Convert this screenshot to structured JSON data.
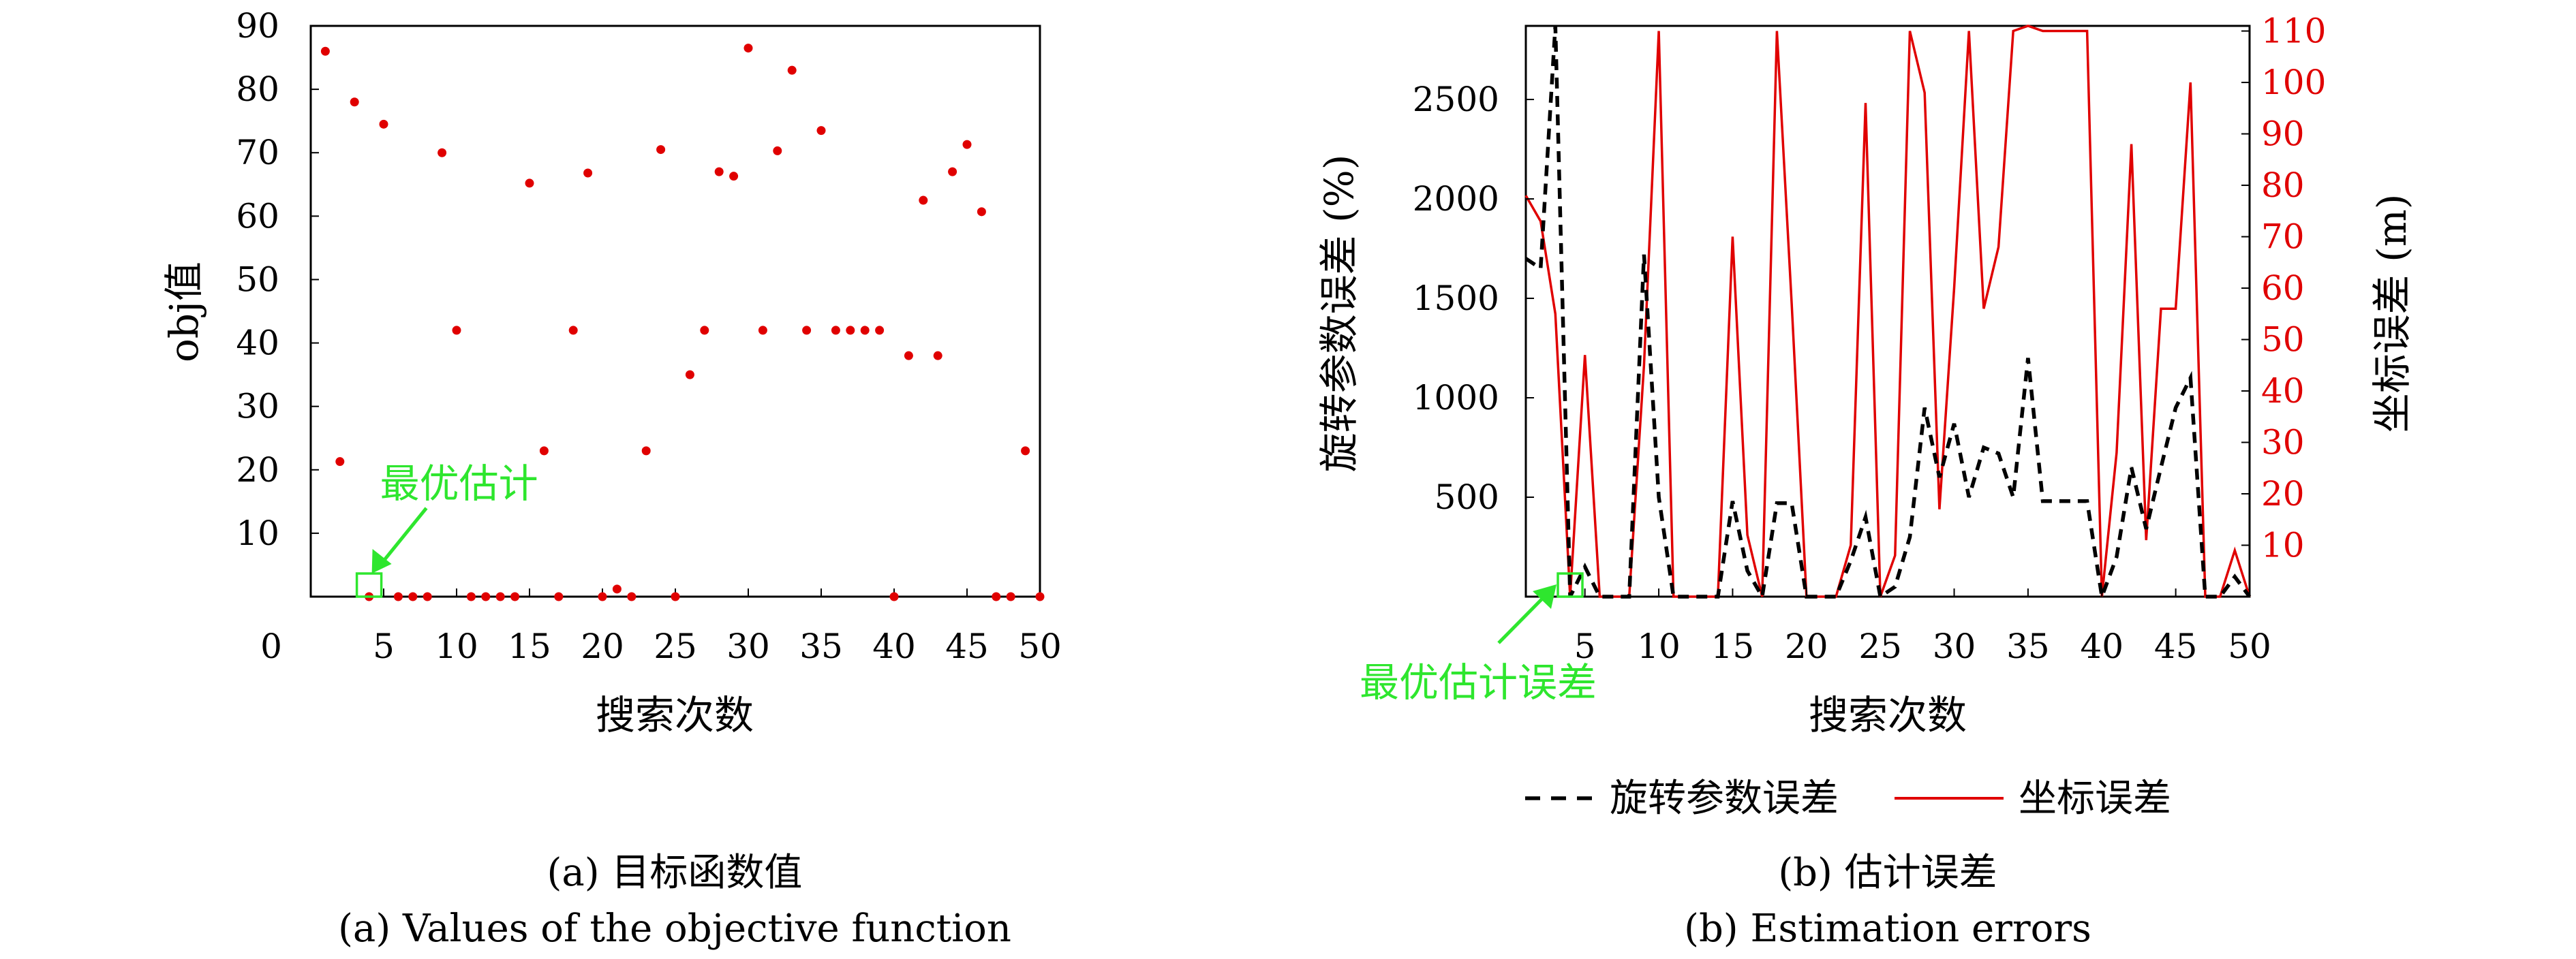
{
  "captions": {
    "a_cn": "(a) 目标函数值",
    "a_en": "(a) Values of the objective function",
    "b_cn": "(b) 估计误差",
    "b_en": "(b) Estimation errors"
  },
  "chart_data": [
    {
      "type": "scatter",
      "xlabel": "搜索次数",
      "ylabel": "obj值",
      "xlim": [
        0,
        50
      ],
      "ylim": [
        0,
        90
      ],
      "xticks": [
        5,
        10,
        15,
        20,
        25,
        30,
        35,
        40,
        45,
        50
      ],
      "xtick_labels": [
        "5",
        "10",
        "15",
        "20",
        "25",
        "30",
        "35",
        "40",
        "45",
        "50"
      ],
      "yticks": [
        10,
        20,
        30,
        40,
        50,
        60,
        70,
        80,
        90
      ],
      "ytick_labels": [
        "10",
        "20",
        "30",
        "40",
        "50",
        "60",
        "70",
        "80",
        "90"
      ],
      "origin_label": "0",
      "grid": false,
      "marker_color": "#e00000",
      "annotation": {
        "text": "最优估计",
        "x": 4,
        "y": 0,
        "color": "#2ee62e"
      },
      "points": [
        [
          1,
          86
        ],
        [
          2,
          21.3
        ],
        [
          3,
          78
        ],
        [
          4,
          0
        ],
        [
          5,
          74.5
        ],
        [
          6,
          0
        ],
        [
          7,
          0
        ],
        [
          8,
          0
        ],
        [
          9,
          70
        ],
        [
          10,
          42
        ],
        [
          11,
          0
        ],
        [
          12,
          0
        ],
        [
          13,
          0
        ],
        [
          14,
          0
        ],
        [
          15,
          65.2
        ],
        [
          16,
          23
        ],
        [
          17,
          0
        ],
        [
          18,
          42
        ],
        [
          19,
          66.8
        ],
        [
          20,
          0
        ],
        [
          21,
          1.2
        ],
        [
          22,
          0
        ],
        [
          23,
          23
        ],
        [
          24,
          70.5
        ],
        [
          25,
          0
        ],
        [
          26,
          35
        ],
        [
          27,
          42
        ],
        [
          28,
          67
        ],
        [
          29,
          66.3
        ],
        [
          30,
          86.5
        ],
        [
          31,
          42
        ],
        [
          32,
          70.3
        ],
        [
          33,
          83
        ],
        [
          34,
          42
        ],
        [
          35,
          73.5
        ],
        [
          36,
          42
        ],
        [
          37,
          42
        ],
        [
          38,
          42
        ],
        [
          39,
          42
        ],
        [
          40,
          0
        ],
        [
          41,
          38
        ],
        [
          42,
          62.5
        ],
        [
          43,
          38
        ],
        [
          44,
          67
        ],
        [
          45,
          71.3
        ],
        [
          46,
          60.7
        ],
        [
          47,
          0
        ],
        [
          48,
          0
        ],
        [
          49,
          23
        ],
        [
          50,
          0
        ]
      ]
    },
    {
      "type": "line",
      "xlabel": "搜索次数",
      "ylabel": "旋转参数误差 (%)",
      "ylabel_right": "坐标误差 (m)",
      "xlim": [
        1,
        50
      ],
      "ylim": [
        0,
        2870
      ],
      "ylim_right": [
        0,
        111
      ],
      "xticks": [
        5,
        10,
        15,
        20,
        25,
        30,
        35,
        40,
        45,
        50
      ],
      "xtick_labels": [
        "5",
        "10",
        "15",
        "20",
        "25",
        "30",
        "35",
        "40",
        "45",
        "50"
      ],
      "yticks": [
        500,
        1000,
        1500,
        2000,
        2500
      ],
      "ytick_labels": [
        "500",
        "1000",
        "1500",
        "2000",
        "2500"
      ],
      "yticks_right": [
        10,
        20,
        30,
        40,
        50,
        60,
        70,
        80,
        90,
        100,
        110
      ],
      "ytick_labels_right": [
        "10",
        "20",
        "30",
        "40",
        "50",
        "60",
        "70",
        "80",
        "90",
        "100",
        "110"
      ],
      "grid": false,
      "legend_position": "bottom",
      "annotation": {
        "text": "最优估计误差",
        "x": 4,
        "y": 0,
        "color": "#2ee62e"
      },
      "x": [
        1,
        2,
        3,
        4,
        5,
        6,
        7,
        8,
        9,
        10,
        11,
        12,
        13,
        14,
        15,
        16,
        17,
        18,
        19,
        20,
        21,
        22,
        23,
        24,
        25,
        26,
        27,
        28,
        29,
        30,
        31,
        32,
        33,
        34,
        35,
        36,
        37,
        38,
        39,
        40,
        41,
        42,
        43,
        44,
        45,
        46,
        47,
        48,
        49,
        50
      ],
      "series": [
        {
          "name": "旋转参数误差",
          "axis": "left",
          "color": "#000000",
          "dash": true,
          "values": [
            1700,
            1650,
            2870,
            0,
            150,
            0,
            0,
            0,
            1720,
            500,
            0,
            0,
            0,
            0,
            480,
            130,
            0,
            470,
            470,
            0,
            0,
            0,
            180,
            400,
            0,
            50,
            300,
            950,
            600,
            870,
            500,
            750,
            720,
            500,
            1200,
            480,
            480,
            480,
            480,
            0,
            200,
            650,
            340,
            650,
            950,
            1100,
            0,
            0,
            100,
            0
          ]
        },
        {
          "name": "坐标误差",
          "axis": "right",
          "color": "#e00000",
          "dash": false,
          "values": [
            78,
            73,
            55,
            0,
            47,
            0,
            0,
            0,
            45,
            110,
            0,
            0,
            0,
            0,
            70,
            12,
            0,
            110,
            57,
            0,
            0,
            0,
            10,
            96,
            0,
            8,
            110,
            98,
            17,
            60,
            110,
            56,
            68,
            110,
            111,
            110,
            110,
            110,
            110,
            0,
            28,
            88,
            11,
            56,
            56,
            100,
            0,
            0,
            9,
            0
          ]
        }
      ]
    }
  ]
}
